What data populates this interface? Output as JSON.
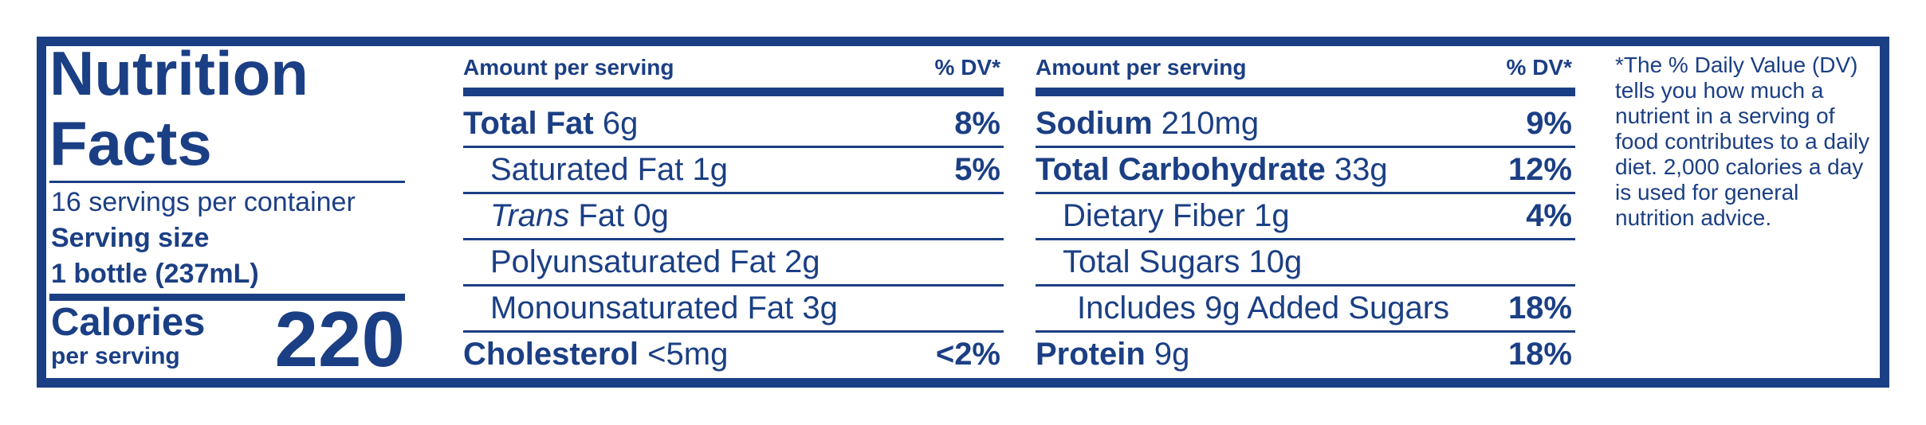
{
  "title": "Nutrition Facts",
  "servings": "16 servings per container",
  "serving_size_label": "Serving size",
  "serving_size": "1 bottle (237mL)",
  "calories_label": "Calories",
  "calories_sub": "per serving",
  "calories": 220,
  "columns": [
    {
      "header": {
        "amount": "Amount per serving",
        "dv": "% DV*"
      },
      "rows": [
        {
          "name": "Total Fat",
          "amount": "6g",
          "dv": "8%",
          "level": 0
        },
        {
          "name": "Saturated Fat",
          "amount": "1g",
          "dv": "5%",
          "level": 1
        },
        {
          "italic_prefix": "Trans",
          "name": "Fat",
          "amount": "0g",
          "level": 1
        },
        {
          "name": "Polyunsaturated Fat",
          "amount": "2g",
          "level": 1
        },
        {
          "name": "Monounsaturated Fat",
          "amount": "3g",
          "level": 1
        },
        {
          "name": "Cholesterol",
          "amount": "<5mg",
          "dv": "<2%",
          "level": 0
        }
      ]
    },
    {
      "header": {
        "amount": "Amount per serving",
        "dv": "% DV*"
      },
      "rows": [
        {
          "name": "Sodium",
          "amount": "210mg",
          "dv": "9%",
          "level": 0
        },
        {
          "name": "Total Carbohydrate",
          "amount": "33g",
          "dv": "12%",
          "level": 0
        },
        {
          "name": "Dietary Fiber",
          "amount": "1g",
          "dv": "4%",
          "level": 1
        },
        {
          "name": "Total Sugars",
          "amount": "10g",
          "level": 1
        },
        {
          "name": "Includes 9g Added Sugars",
          "dv": "18%",
          "level": 2
        },
        {
          "name": "Protein",
          "amount": "9g",
          "dv": "18%",
          "level": 0
        }
      ]
    }
  ],
  "footnote": "*The % Daily Value (DV) tells you how much a nutrient in a serving of food contributes to a daily diet. 2,000 calories a day is used for general nutrition advice."
}
